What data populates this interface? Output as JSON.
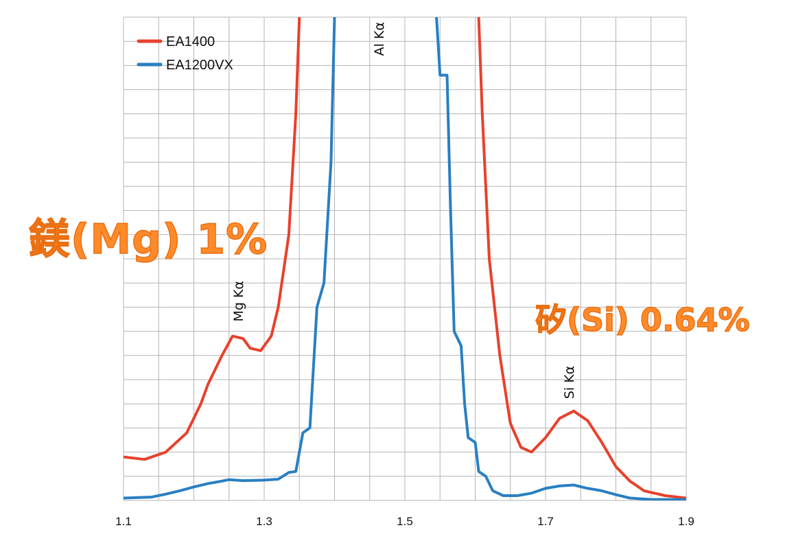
{
  "chart_data": {
    "type": "line",
    "xlim": [
      1.1,
      1.9
    ],
    "ylim": [
      0,
      100
    ],
    "x_ticks": [
      "1.1",
      "1.3",
      "1.5",
      "1.7",
      "1.9"
    ],
    "grid": true,
    "legend_position": "top-left",
    "series": [
      {
        "name": "EA1400",
        "color": "#e8412c",
        "points": [
          [
            1.1,
            9
          ],
          [
            1.13,
            8.5
          ],
          [
            1.16,
            10
          ],
          [
            1.19,
            14
          ],
          [
            1.21,
            20
          ],
          [
            1.22,
            24
          ],
          [
            1.24,
            30
          ],
          [
            1.255,
            34
          ],
          [
            1.27,
            33.5
          ],
          [
            1.28,
            31.5
          ],
          [
            1.295,
            31
          ],
          [
            1.31,
            34
          ],
          [
            1.32,
            40
          ],
          [
            1.335,
            55
          ],
          [
            1.345,
            80
          ],
          [
            1.35,
            100
          ]
        ]
      },
      {
        "name": "EA1200VX",
        "color": "#2a7fc1",
        "points": [
          [
            1.1,
            0.5
          ],
          [
            1.14,
            0.7
          ],
          [
            1.16,
            1.3
          ],
          [
            1.18,
            2.0
          ],
          [
            1.2,
            2.8
          ],
          [
            1.22,
            3.5
          ],
          [
            1.24,
            4.0
          ],
          [
            1.25,
            4.3
          ],
          [
            1.27,
            4.1
          ],
          [
            1.3,
            4.2
          ],
          [
            1.32,
            4.4
          ],
          [
            1.335,
            5.8
          ],
          [
            1.345,
            6.0
          ],
          [
            1.355,
            14
          ],
          [
            1.365,
            15
          ],
          [
            1.375,
            40
          ],
          [
            1.385,
            45
          ],
          [
            1.395,
            70
          ],
          [
            1.4,
            100
          ]
        ]
      },
      {
        "name": "EA1400",
        "color": "#e8412c",
        "points": [
          [
            1.605,
            100
          ],
          [
            1.61,
            80
          ],
          [
            1.62,
            50
          ],
          [
            1.635,
            30
          ],
          [
            1.65,
            16
          ],
          [
            1.665,
            11
          ],
          [
            1.68,
            10
          ],
          [
            1.7,
            13
          ],
          [
            1.72,
            17
          ],
          [
            1.74,
            18.5
          ],
          [
            1.76,
            16.5
          ],
          [
            1.78,
            12
          ],
          [
            1.8,
            7
          ],
          [
            1.82,
            4
          ],
          [
            1.84,
            2
          ],
          [
            1.87,
            1
          ],
          [
            1.9,
            0.5
          ]
        ]
      },
      {
        "name": "EA1200VX",
        "color": "#2a7fc1",
        "points": [
          [
            1.545,
            100
          ],
          [
            1.55,
            88
          ],
          [
            1.56,
            88
          ],
          [
            1.565,
            60
          ],
          [
            1.57,
            35
          ],
          [
            1.58,
            32
          ],
          [
            1.585,
            20
          ],
          [
            1.59,
            13
          ],
          [
            1.6,
            12
          ],
          [
            1.605,
            6
          ],
          [
            1.615,
            5
          ],
          [
            1.625,
            2
          ],
          [
            1.64,
            1
          ],
          [
            1.66,
            1
          ],
          [
            1.68,
            1.5
          ],
          [
            1.7,
            2.5
          ],
          [
            1.72,
            3.0
          ],
          [
            1.74,
            3.2
          ],
          [
            1.76,
            2.5
          ],
          [
            1.78,
            2.0
          ],
          [
            1.8,
            1.2
          ],
          [
            1.82,
            0.5
          ],
          [
            1.85,
            0.2
          ],
          [
            1.9,
            0.2
          ]
        ]
      }
    ],
    "annotations": [
      {
        "text": "Mg Kα",
        "x": 1.27,
        "y": 37,
        "rotation": -90
      },
      {
        "text": "Al Kα",
        "x": 1.47,
        "y": 92,
        "rotation": -90
      },
      {
        "text": "Si Kα",
        "x": 1.74,
        "y": 21,
        "rotation": -90
      }
    ]
  },
  "callouts": {
    "mg": "鎂(Mg) 1%",
    "si": "矽(Si) 0.64%"
  }
}
